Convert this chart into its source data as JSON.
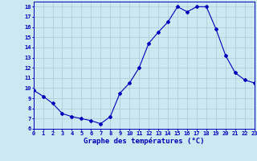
{
  "hours": [
    0,
    1,
    2,
    3,
    4,
    5,
    6,
    7,
    8,
    9,
    10,
    11,
    12,
    13,
    14,
    15,
    16,
    17,
    18,
    19,
    20,
    21,
    22,
    23
  ],
  "temperatures": [
    9.8,
    9.2,
    8.5,
    7.5,
    7.2,
    7.0,
    6.8,
    6.5,
    7.2,
    9.5,
    10.5,
    12.0,
    14.4,
    15.5,
    16.5,
    18.0,
    17.5,
    18.0,
    18.0,
    15.8,
    13.2,
    11.5,
    10.8,
    10.5
  ],
  "xlim": [
    0,
    23
  ],
  "ylim": [
    6,
    18.5
  ],
  "yticks": [
    6,
    7,
    8,
    9,
    10,
    11,
    12,
    13,
    14,
    15,
    16,
    17,
    18
  ],
  "xticks": [
    0,
    1,
    2,
    3,
    4,
    5,
    6,
    7,
    8,
    9,
    10,
    11,
    12,
    13,
    14,
    15,
    16,
    17,
    18,
    19,
    20,
    21,
    22,
    23
  ],
  "xlabel": "Graphe des températures (°C)",
  "line_color": "#0000bb",
  "marker": "D",
  "marker_size": 2.0,
  "bg_color": "#cce8f0",
  "grid_color": "#b0c8d8",
  "axis_label_color": "#0000bb",
  "tick_label_color": "#0000bb",
  "xlabel_fontsize": 6.5,
  "tick_fontsize": 5.0
}
